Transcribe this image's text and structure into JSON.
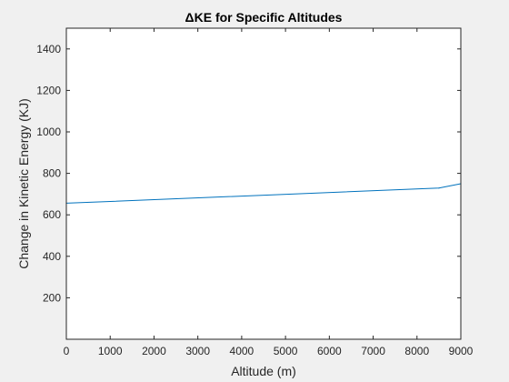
{
  "chart_data": {
    "type": "line",
    "title": "ΔKE for  Specific Altitudes",
    "xlabel": "Altitude (m)",
    "ylabel": "Change in Kinetic Energy (KJ)",
    "xlim": [
      0,
      9000
    ],
    "ylim": [
      0,
      1500
    ],
    "xticks": [
      0,
      1000,
      2000,
      3000,
      4000,
      5000,
      6000,
      7000,
      8000,
      9000
    ],
    "yticks": [
      200,
      400,
      600,
      800,
      1000,
      1200,
      1400
    ],
    "grid": false,
    "series": [
      {
        "color": "#0072bd",
        "x": [
          0,
          8500,
          9000
        ],
        "y": [
          656,
          729,
          750
        ]
      }
    ]
  }
}
